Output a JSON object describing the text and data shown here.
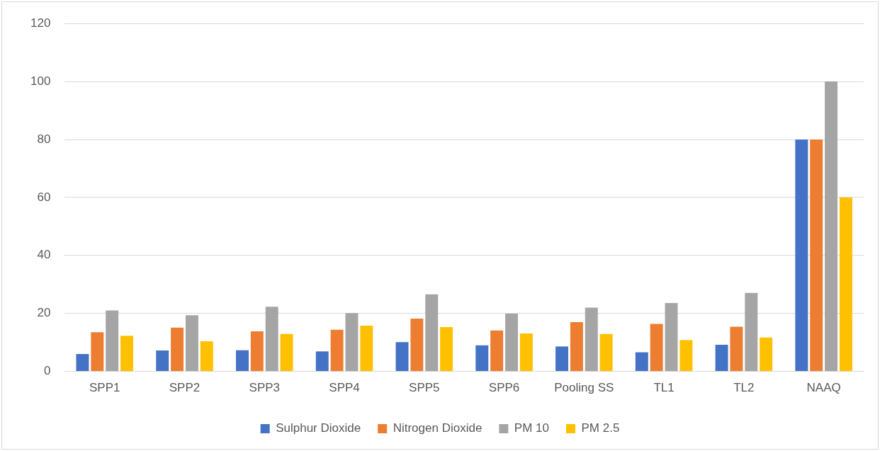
{
  "chart_data": {
    "type": "bar",
    "categories": [
      "SPP1",
      "SPP2",
      "SPP3",
      "SPP4",
      "SPP5",
      "SPP6",
      "Pooling SS",
      "TL1",
      "TL2",
      "NAAQ"
    ],
    "series": [
      {
        "name": "Sulphur Dioxide",
        "color": "#4472c4",
        "values": [
          6,
          7.2,
          7.3,
          6.9,
          10.1,
          9,
          8.6,
          6.6,
          9.2,
          80
        ]
      },
      {
        "name": "Nitrogen Dioxide",
        "color": "#ed7d31",
        "values": [
          13.5,
          15.1,
          13.8,
          14.4,
          18.2,
          14.1,
          17,
          16.4,
          15.4,
          80
        ]
      },
      {
        "name": "PM 10",
        "color": "#a5a5a5",
        "values": [
          21,
          19.4,
          22.3,
          20.1,
          26.6,
          19.9,
          22,
          23.6,
          27.1,
          100
        ]
      },
      {
        "name": "PM 2.5",
        "color": "#ffc000",
        "values": [
          12.3,
          10.4,
          12.9,
          15.8,
          15.3,
          13.1,
          12.9,
          10.8,
          11.7,
          60
        ]
      }
    ],
    "ylim": [
      0,
      120
    ],
    "yticks": [
      0,
      20,
      40,
      60,
      80,
      100,
      120
    ],
    "grid": "y",
    "legend": "bottom"
  }
}
